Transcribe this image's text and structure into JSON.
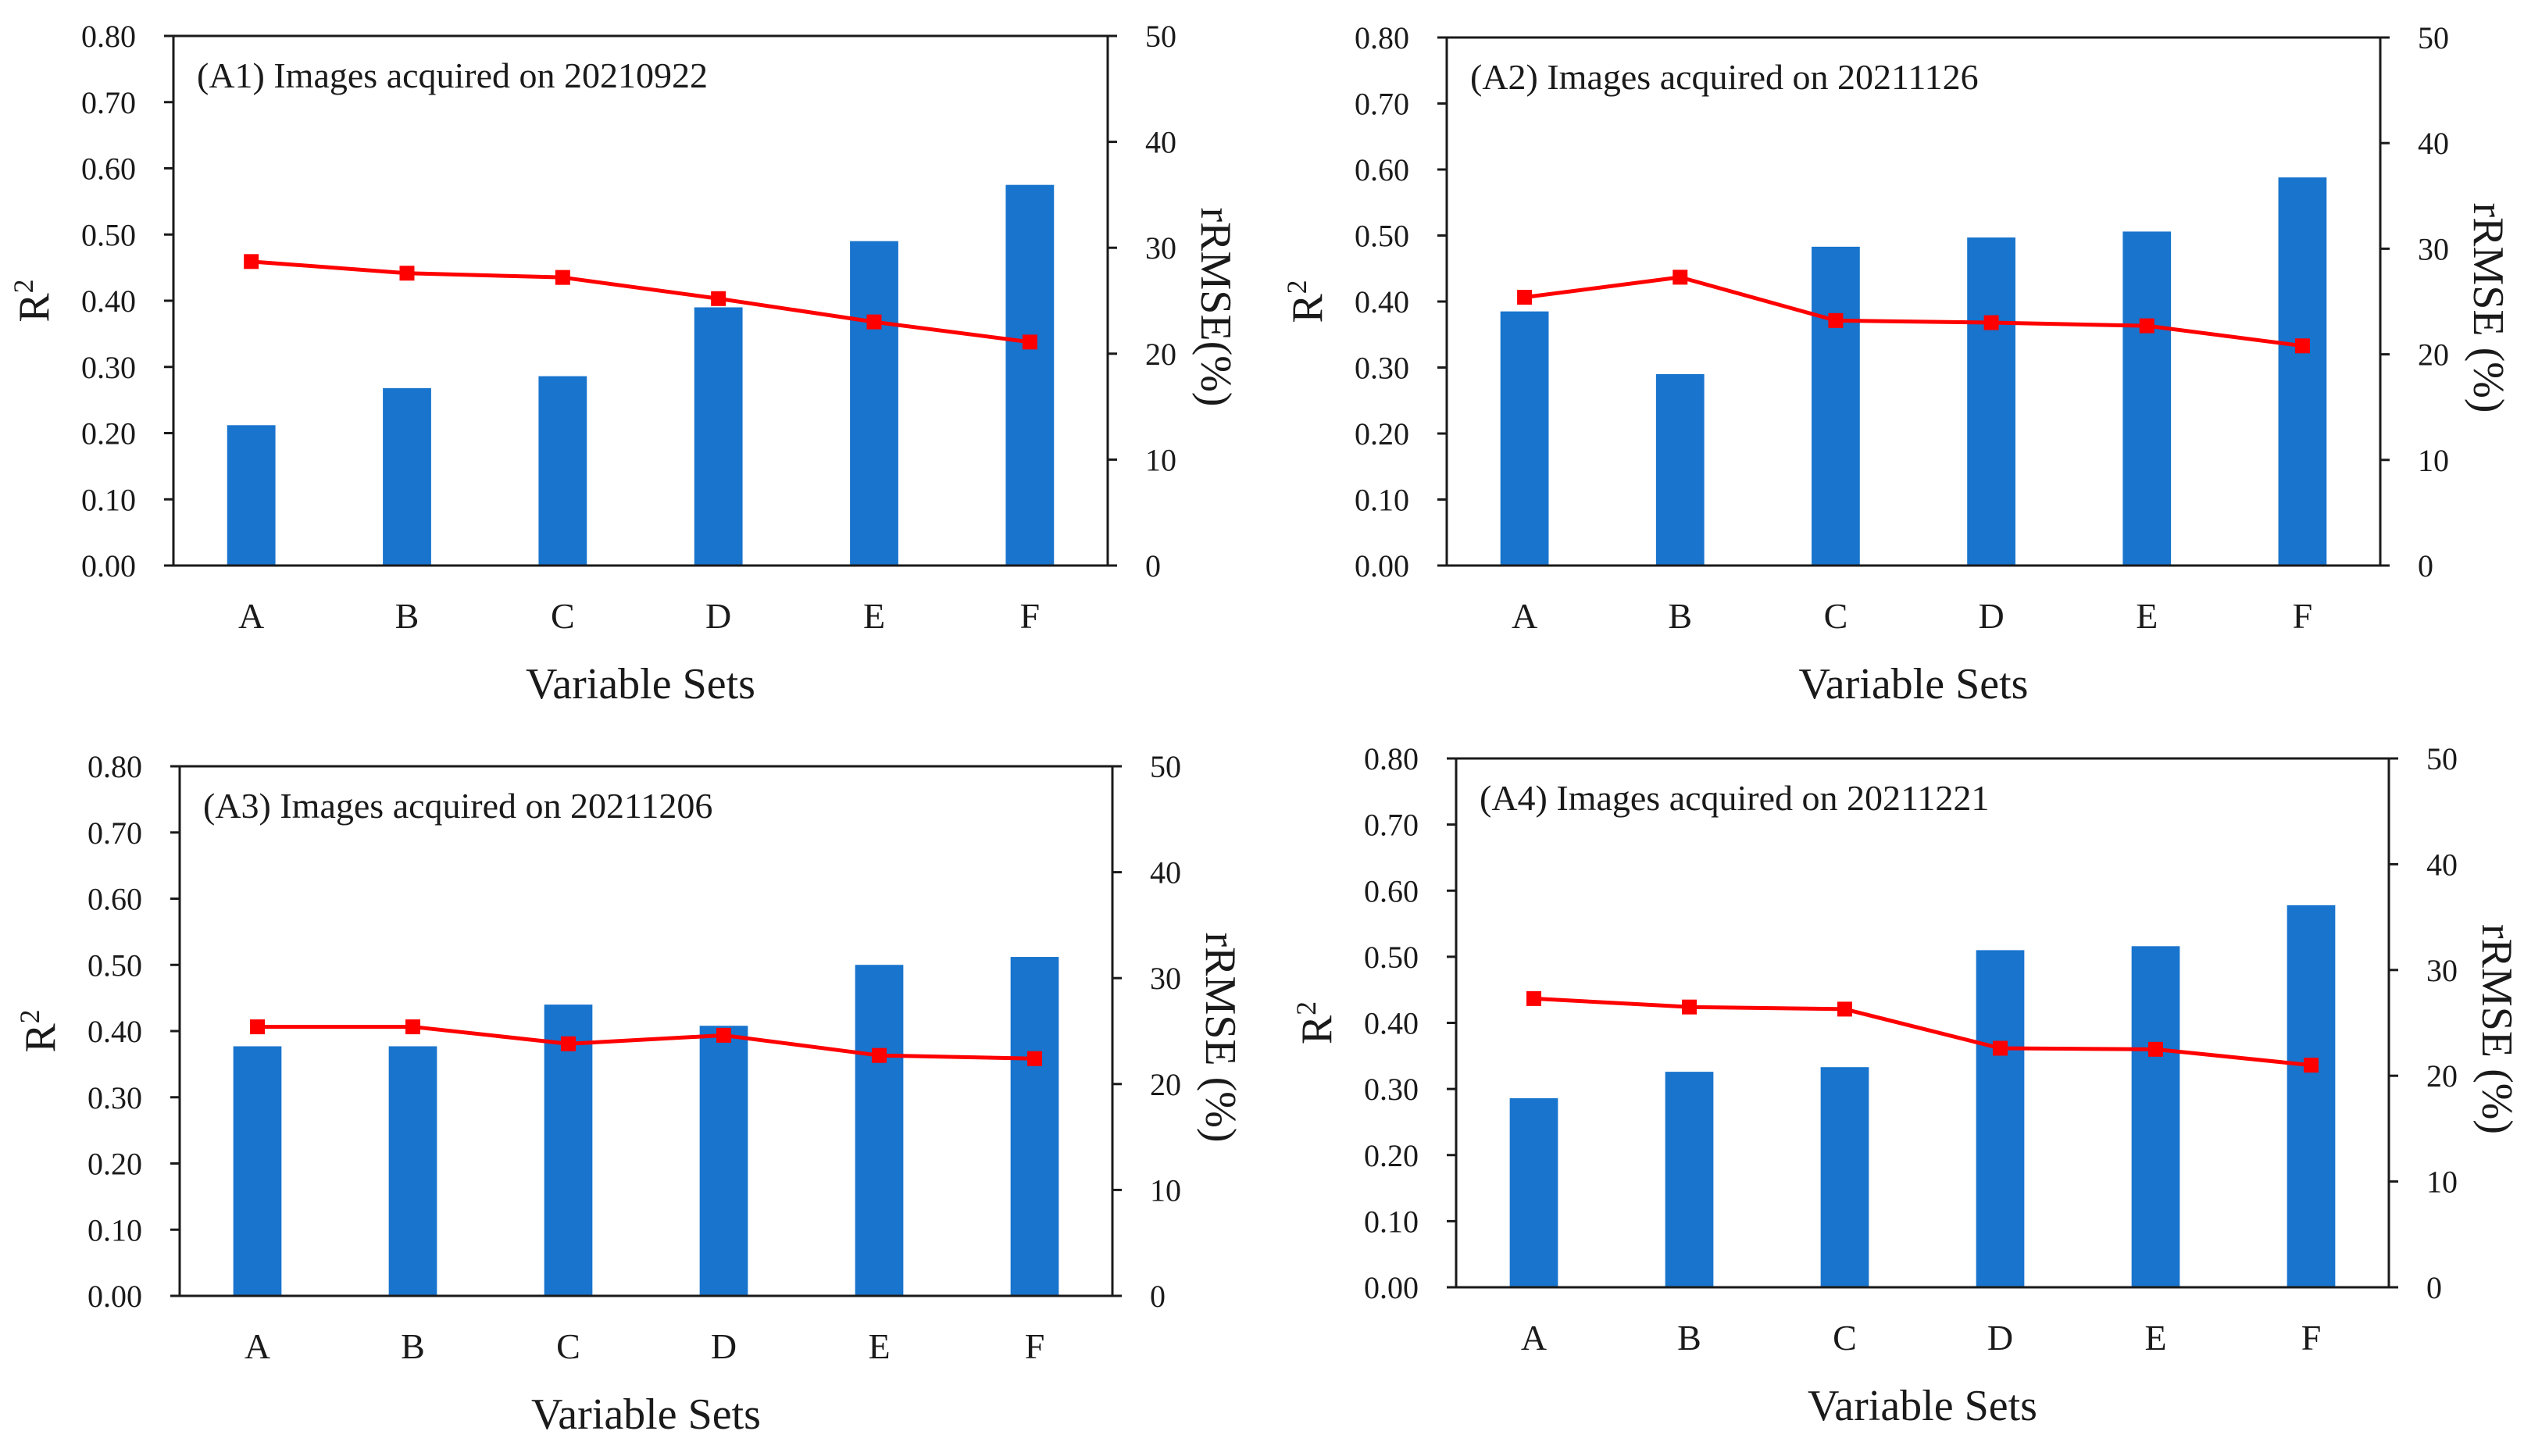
{
  "figure": {
    "colors": {
      "bar": "#1874cd",
      "line": "#ff0000",
      "axis": "#1a1a1a"
    }
  },
  "chart_data": [
    {
      "type": "bar+line",
      "title": "(A1) Images acquired on 20210922",
      "categories": [
        "A",
        "B",
        "C",
        "D",
        "E",
        "F"
      ],
      "xlabel": "Variable Sets",
      "ylabel": "R",
      "ylabel_sup": "2",
      "y2label": "rRMSE(%)",
      "ylim": [
        0,
        0.8
      ],
      "y2lim": [
        0,
        50
      ],
      "yticks": [
        "0.00",
        "0.10",
        "0.20",
        "0.30",
        "0.40",
        "0.50",
        "0.60",
        "0.70",
        "0.80"
      ],
      "y2ticks": [
        "0",
        "10",
        "20",
        "30",
        "40",
        "50"
      ],
      "series": [
        {
          "name": "R2",
          "kind": "bar",
          "axis": "left",
          "values": [
            0.212,
            0.268,
            0.286,
            0.39,
            0.49,
            0.575
          ]
        },
        {
          "name": "rRMSE",
          "kind": "line",
          "axis": "right",
          "values": [
            28.7,
            27.6,
            27.2,
            25.2,
            23.0,
            21.1
          ]
        }
      ]
    },
    {
      "type": "bar+line",
      "title": "(A2) Images acquired on 20211126",
      "categories": [
        "A",
        "B",
        "C",
        "D",
        "E",
        "F"
      ],
      "xlabel": "Variable Sets",
      "ylabel": "R",
      "ylabel_sup": "2",
      "y2label": "rRMSE (%)",
      "ylim": [
        0,
        0.8
      ],
      "y2lim": [
        0,
        50
      ],
      "yticks": [
        "0.00",
        "0.10",
        "0.20",
        "0.30",
        "0.40",
        "0.50",
        "0.60",
        "0.70",
        "0.80"
      ],
      "y2ticks": [
        "0",
        "10",
        "20",
        "30",
        "40",
        "50"
      ],
      "series": [
        {
          "name": "R2",
          "kind": "bar",
          "axis": "left",
          "values": [
            0.385,
            0.29,
            0.483,
            0.497,
            0.506,
            0.588
          ]
        },
        {
          "name": "rRMSE",
          "kind": "line",
          "axis": "right",
          "values": [
            25.4,
            27.3,
            23.2,
            23.0,
            22.7,
            20.8
          ]
        }
      ]
    },
    {
      "type": "bar+line",
      "title": "(A3) Images acquired on 20211206",
      "categories": [
        "A",
        "B",
        "C",
        "D",
        "E",
        "F"
      ],
      "xlabel": "Variable Sets",
      "ylabel": "R",
      "ylabel_sup": "2",
      "y2label": "rRMSE (%)",
      "ylim": [
        0,
        0.8
      ],
      "y2lim": [
        0,
        50
      ],
      "yticks": [
        "0.00",
        "0.10",
        "0.20",
        "0.30",
        "0.40",
        "0.50",
        "0.60",
        "0.70",
        "0.80"
      ],
      "y2ticks": [
        "0",
        "10",
        "20",
        "30",
        "40",
        "50"
      ],
      "series": [
        {
          "name": "R2",
          "kind": "bar",
          "axis": "left",
          "values": [
            0.377,
            0.377,
            0.44,
            0.408,
            0.5,
            0.512
          ]
        },
        {
          "name": "rRMSE",
          "kind": "line",
          "axis": "right",
          "values": [
            25.4,
            25.4,
            23.8,
            24.6,
            22.7,
            22.4
          ]
        }
      ]
    },
    {
      "type": "bar+line",
      "title": "(A4) Images acquired on 20211221",
      "categories": [
        "A",
        "B",
        "C",
        "D",
        "E",
        "F"
      ],
      "xlabel": "Variable Sets",
      "ylabel": "R",
      "ylabel_sup": "2",
      "y2label": "rRMSE (%)",
      "ylim": [
        0,
        0.8
      ],
      "y2lim": [
        0,
        50
      ],
      "yticks": [
        "0.00",
        "0.10",
        "0.20",
        "0.30",
        "0.40",
        "0.50",
        "0.60",
        "0.70",
        "0.80"
      ],
      "y2ticks": [
        "0",
        "10",
        "20",
        "30",
        "40",
        "50"
      ],
      "series": [
        {
          "name": "R2",
          "kind": "bar",
          "axis": "left",
          "values": [
            0.286,
            0.326,
            0.333,
            0.51,
            0.516,
            0.578
          ]
        },
        {
          "name": "rRMSE",
          "kind": "line",
          "axis": "right",
          "values": [
            27.3,
            26.5,
            26.3,
            22.6,
            22.5,
            21.0
          ]
        }
      ]
    }
  ]
}
